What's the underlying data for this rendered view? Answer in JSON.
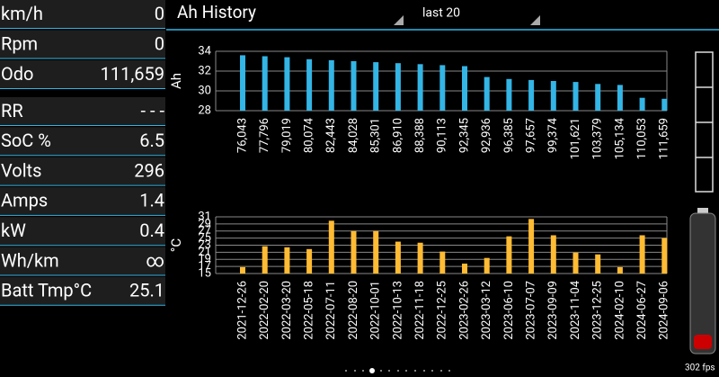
{
  "header": {
    "title": "Ah History",
    "selector": "last 20"
  },
  "panel": {
    "rows": [
      {
        "label": "km/h",
        "value": "0"
      },
      {
        "label": "Rpm",
        "value": "0"
      },
      {
        "label": "Odo",
        "value": "111,659"
      },
      {
        "label": "RR",
        "value": "- - -"
      },
      {
        "label": "SoC %",
        "value": "6.5"
      },
      {
        "label": "Volts",
        "value": "296"
      },
      {
        "label": "Amps",
        "value": "1.4"
      },
      {
        "label": "kW",
        "value": "0.4"
      },
      {
        "label": "Wh/km",
        "value": "∞"
      },
      {
        "label": "Batt Tmp°C",
        "value": "25.1"
      }
    ]
  },
  "footer": {
    "fps": "302 fps"
  },
  "chart_data": [
    {
      "type": "bar",
      "y_label": "Ah",
      "color": "#33b5e5",
      "grid": true,
      "categories": [
        "76,043",
        "77,796",
        "79,019",
        "80,074",
        "82,443",
        "84,028",
        "85,301",
        "86,910",
        "88,388",
        "90,113",
        "92,345",
        "92,936",
        "96,385",
        "97,657",
        "99,374",
        "101,621",
        "103,379",
        "105,134",
        "110,053",
        "111,659"
      ],
      "values": [
        33.6,
        33.5,
        33.4,
        33.2,
        33.1,
        33.0,
        32.9,
        32.8,
        32.7,
        32.6,
        32.5,
        31.4,
        31.2,
        31.1,
        31.0,
        30.9,
        30.7,
        30.6,
        29.3,
        29.2
      ],
      "ylim": [
        28,
        34
      ],
      "yticks": [
        28,
        30,
        32,
        34
      ]
    },
    {
      "type": "bar",
      "y_label": "°C",
      "color": "#ffbb33",
      "grid": true,
      "categories": [
        "2021-12-26",
        "2022-02-20",
        "2022-03-20",
        "2022-05-18",
        "2022-07-11",
        "2022-08-20",
        "2022-10-01",
        "2022-10-13",
        "2022-11-18",
        "2022-12-25",
        "2023-02-26",
        "2023-03-12",
        "2023-06-10",
        "2023-07-07",
        "2023-09-09",
        "2023-11-04",
        "2023-12-25",
        "2024-02-10",
        "2024-06-27",
        "2024-09-06"
      ],
      "values": [
        16.8,
        22.7,
        22.4,
        21.9,
        29.9,
        27,
        27,
        24,
        23.7,
        21.2,
        17.8,
        19.4,
        25.5,
        30.4,
        25.8,
        20.9,
        20.4,
        16.8,
        25.8,
        25
      ],
      "ylim": [
        15,
        31
      ],
      "yticks": [
        15,
        17,
        19,
        21,
        23,
        25,
        27,
        29,
        31
      ]
    }
  ]
}
